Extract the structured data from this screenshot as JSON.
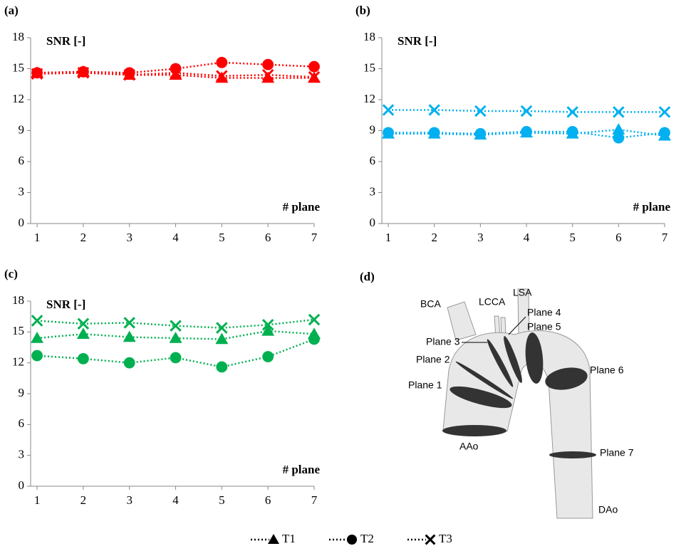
{
  "chart_data": [
    {
      "type": "line",
      "label": "(a)",
      "ylabel": "SNR [-]",
      "xlabel": "# plane",
      "x": [
        1,
        2,
        3,
        4,
        5,
        6,
        7
      ],
      "xlim": [
        0.86,
        7
      ],
      "xticks": [
        1,
        2,
        3,
        4,
        5,
        6,
        7
      ],
      "ylim": [
        0,
        18
      ],
      "yticks": [
        0,
        3,
        6,
        9,
        12,
        15,
        18
      ],
      "grid": false,
      "line_style": "dotted",
      "series": [
        {
          "marker": "triangle",
          "color": "#ff0000",
          "values": [
            14.6,
            14.7,
            14.4,
            14.4,
            14.1,
            14.1,
            14.1
          ]
        },
        {
          "marker": "circle",
          "color": "#ff0000",
          "values": [
            14.6,
            14.7,
            14.6,
            15.0,
            15.6,
            15.4,
            15.2
          ]
        },
        {
          "marker": "x",
          "color": "#ff0000",
          "values": [
            14.5,
            14.6,
            14.4,
            14.6,
            14.3,
            14.4,
            14.2
          ]
        }
      ]
    },
    {
      "type": "line",
      "label": "(b)",
      "ylabel": "SNR [-]",
      "xlabel": "# plane",
      "x": [
        1,
        2,
        3,
        4,
        5,
        6,
        7
      ],
      "xlim": [
        0.86,
        7
      ],
      "xticks": [
        1,
        2,
        3,
        4,
        5,
        6,
        7
      ],
      "ylim": [
        0,
        18
      ],
      "yticks": [
        0,
        3,
        6,
        9,
        12,
        15,
        18
      ],
      "grid": false,
      "line_style": "dotted",
      "series": [
        {
          "marker": "triangle",
          "color": "#00b0f0",
          "values": [
            8.7,
            8.7,
            8.6,
            8.8,
            8.7,
            9.1,
            8.5
          ]
        },
        {
          "marker": "circle",
          "color": "#00b0f0",
          "values": [
            8.8,
            8.8,
            8.7,
            8.9,
            8.9,
            8.3,
            8.8
          ]
        },
        {
          "marker": "x",
          "color": "#00b0f0",
          "values": [
            11.0,
            11.0,
            10.9,
            10.9,
            10.8,
            10.8,
            10.8
          ]
        }
      ]
    },
    {
      "type": "line",
      "label": "(c)",
      "ylabel": "SNR [-]",
      "xlabel": "# plane",
      "x": [
        1,
        2,
        3,
        4,
        5,
        6,
        7
      ],
      "xlim": [
        0.86,
        7
      ],
      "xticks": [
        1,
        2,
        3,
        4,
        5,
        6,
        7
      ],
      "ylim": [
        0,
        18
      ],
      "yticks": [
        0,
        3,
        6,
        9,
        12,
        15,
        18
      ],
      "grid": false,
      "line_style": "dotted",
      "series": [
        {
          "marker": "triangle",
          "color": "#00b050",
          "values": [
            14.4,
            14.8,
            14.5,
            14.4,
            14.3,
            15.1,
            14.8
          ]
        },
        {
          "marker": "circle",
          "color": "#00b050",
          "values": [
            12.7,
            12.4,
            12.0,
            12.5,
            11.6,
            12.6,
            14.3
          ]
        },
        {
          "marker": "x",
          "color": "#00b050",
          "values": [
            16.1,
            15.8,
            15.9,
            15.6,
            15.4,
            15.7,
            16.2
          ]
        }
      ]
    }
  ],
  "legend": {
    "color": "#000000",
    "items": [
      {
        "name": "T1",
        "marker": "triangle"
      },
      {
        "name": "T2",
        "marker": "circle"
      },
      {
        "name": "T3",
        "marker": "x"
      }
    ]
  },
  "diagram": {
    "label": "(d)",
    "labels": [
      "BCA",
      "LCCA",
      "LSA",
      "Plane 4",
      "Plane 5",
      "Plane 3",
      "Plane 2",
      "Plane 1",
      "Plane 6",
      "AAo",
      "Plane 7",
      "DAo"
    ]
  }
}
